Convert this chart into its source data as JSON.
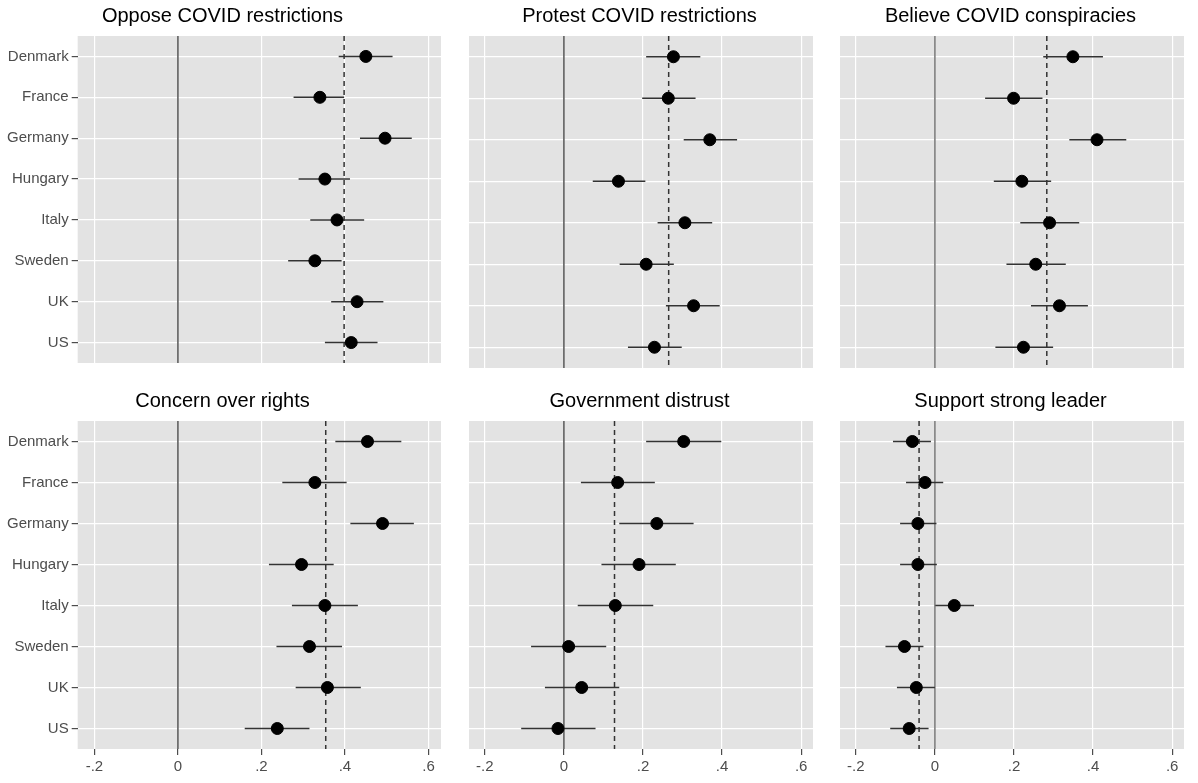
{
  "chart_data": [
    {
      "type": "scatter",
      "orientation": "horizontal",
      "title": "Oppose COVID restrictions",
      "categories": [
        "Denmark",
        "France",
        "Germany",
        "Hungary",
        "Italy",
        "Sweden",
        "UK",
        "US"
      ],
      "tick_labels": "y",
      "grid": true,
      "marker": "circle",
      "color": "#000000",
      "values": [
        0.45,
        0.34,
        0.496,
        0.352,
        0.381,
        0.328,
        0.429,
        0.415
      ],
      "errors": [
        [
          0.385,
          0.514
        ],
        [
          0.277,
          0.398
        ],
        [
          0.436,
          0.56
        ],
        [
          0.289,
          0.412
        ],
        [
          0.317,
          0.446
        ],
        [
          0.264,
          0.392
        ],
        [
          0.367,
          0.492
        ],
        [
          0.352,
          0.478
        ]
      ],
      "xlim": [
        -0.24,
        0.63
      ],
      "xticks": [
        -0.2,
        0,
        0.2,
        0.4,
        0.6
      ],
      "ref_lines": [
        {
          "axis": "x",
          "value": 0,
          "color": "#555555",
          "line_style": "solid"
        },
        {
          "axis": "x",
          "value": 0.398,
          "color": "#333333",
          "line_style": "dashed"
        }
      ]
    },
    {
      "type": "scatter",
      "orientation": "horizontal",
      "title": "Protest COVID restrictions",
      "categories": [
        null,
        null,
        null,
        null,
        null,
        null,
        null,
        null
      ],
      "tick_labels": false,
      "grid": true,
      "marker": "circle",
      "color": "#000000",
      "values": [
        0.277,
        0.264,
        0.369,
        0.138,
        0.306,
        0.208,
        0.328,
        0.229
      ],
      "errors": [
        [
          0.208,
          0.345
        ],
        [
          0.198,
          0.333
        ],
        [
          0.303,
          0.438
        ],
        [
          0.073,
          0.206
        ],
        [
          0.237,
          0.375
        ],
        [
          0.141,
          0.278
        ],
        [
          0.258,
          0.394
        ],
        [
          0.162,
          0.298
        ]
      ],
      "xlim": [
        -0.24,
        0.63
      ],
      "xticks": [
        -0.2,
        0,
        0.2,
        0.4,
        0.6
      ],
      "ref_lines": [
        {
          "axis": "x",
          "value": 0,
          "color": "#555555",
          "line_style": "solid"
        },
        {
          "axis": "x",
          "value": 0.265,
          "color": "#333333",
          "line_style": "dashed"
        }
      ]
    },
    {
      "type": "scatter",
      "orientation": "horizontal",
      "title": "Believe COVID conspiracies",
      "categories": [
        null,
        null,
        null,
        null,
        null,
        null,
        null,
        null
      ],
      "tick_labels": false,
      "grid": true,
      "marker": "circle",
      "color": "#000000",
      "values": [
        0.349,
        0.199,
        0.41,
        0.22,
        0.29,
        0.255,
        0.315,
        0.224
      ],
      "errors": [
        [
          0.274,
          0.425
        ],
        [
          0.127,
          0.272
        ],
        [
          0.34,
          0.484
        ],
        [
          0.149,
          0.294
        ],
        [
          0.216,
          0.365
        ],
        [
          0.181,
          0.331
        ],
        [
          0.243,
          0.387
        ],
        [
          0.153,
          0.299
        ]
      ],
      "xlim": [
        -0.24,
        0.63
      ],
      "xticks": [
        -0.2,
        0,
        0.2,
        0.4,
        0.6
      ],
      "ref_lines": [
        {
          "axis": "x",
          "value": 0,
          "color": "#777777",
          "line_style": "solid"
        },
        {
          "axis": "x",
          "value": 0.283,
          "color": "#333333",
          "line_style": "dashed"
        }
      ]
    },
    {
      "type": "scatter",
      "orientation": "horizontal",
      "title": "Concern over rights",
      "categories": [
        "Denmark",
        "France",
        "Germany",
        "Hungary",
        "Italy",
        "Sweden",
        "UK",
        "US"
      ],
      "grid": true,
      "marker": "circle",
      "color": "#000000",
      "values": [
        0.454,
        0.328,
        0.49,
        0.296,
        0.352,
        0.315,
        0.358,
        0.238
      ],
      "errors": [
        [
          0.377,
          0.535
        ],
        [
          0.25,
          0.404
        ],
        [
          0.413,
          0.565
        ],
        [
          0.218,
          0.373
        ],
        [
          0.273,
          0.431
        ],
        [
          0.236,
          0.393
        ],
        [
          0.282,
          0.438
        ],
        [
          0.16,
          0.315
        ]
      ],
      "xlim": [
        -0.24,
        0.63
      ],
      "xticks": [
        {
          "value": -0.2,
          "label": "-.2"
        },
        {
          "value": 0,
          "label": "0"
        },
        {
          "value": 0.2,
          "label": ".2"
        },
        {
          "value": 0.4,
          "label": ".4"
        },
        {
          "value": 0.6,
          "label": ".6"
        }
      ],
      "ref_lines": [
        {
          "axis": "x",
          "value": 0,
          "color": "#555555",
          "line_style": "solid"
        },
        {
          "axis": "x",
          "value": 0.354,
          "color": "#333333",
          "line_style": "dashed"
        }
      ]
    },
    {
      "type": "scatter",
      "orientation": "horizontal",
      "title": "Government distrust",
      "categories": [
        null,
        null,
        null,
        null,
        null,
        null,
        null,
        null
      ],
      "tick_labels": "x",
      "grid": true,
      "marker": "circle",
      "color": "#000000",
      "values": [
        0.303,
        0.136,
        0.235,
        0.19,
        0.13,
        0.012,
        0.045,
        -0.015
      ],
      "errors": [
        [
          0.208,
          0.398
        ],
        [
          0.043,
          0.23
        ],
        [
          0.14,
          0.328
        ],
        [
          0.095,
          0.283
        ],
        [
          0.035,
          0.226
        ],
        [
          -0.083,
          0.107
        ],
        [
          -0.048,
          0.14
        ],
        [
          -0.108,
          0.08
        ]
      ],
      "xlim": [
        -0.24,
        0.63
      ],
      "xticks": [
        {
          "value": -0.2,
          "label": "-.2"
        },
        {
          "value": 0,
          "label": "0"
        },
        {
          "value": 0.2,
          "label": ".2"
        },
        {
          "value": 0.4,
          "label": ".4"
        },
        {
          "value": 0.6,
          "label": ".6"
        }
      ],
      "ref_lines": [
        {
          "axis": "x",
          "value": 0,
          "color": "#555555",
          "line_style": "solid"
        },
        {
          "axis": "x",
          "value": 0.128,
          "color": "#333333",
          "line_style": "dashed"
        }
      ]
    },
    {
      "type": "scatter",
      "orientation": "horizontal",
      "title": "Support strong leader",
      "categories": [
        null,
        null,
        null,
        null,
        null,
        null,
        null,
        null
      ],
      "tick_labels": "x",
      "grid": true,
      "marker": "circle",
      "color": "#000000",
      "values": [
        -0.057,
        -0.025,
        -0.043,
        -0.043,
        0.049,
        -0.077,
        -0.047,
        -0.065
      ],
      "errors": [
        [
          -0.106,
          -0.01
        ],
        [
          -0.073,
          0.021
        ],
        [
          -0.088,
          0.004
        ],
        [
          -0.088,
          0.005
        ],
        [
          0.001,
          0.099
        ],
        [
          -0.125,
          -0.029
        ],
        [
          -0.096,
          0
        ],
        [
          -0.113,
          -0.016
        ]
      ],
      "xlim": [
        -0.24,
        0.63
      ],
      "xticks": [
        {
          "value": -0.2,
          "label": "-.2"
        },
        {
          "value": 0,
          "label": "0"
        },
        {
          "value": 0.2,
          "label": ".2"
        },
        {
          "value": 0.4,
          "label": ".4"
        },
        {
          "value": 0.6,
          "label": ".6"
        }
      ],
      "ref_lines": [
        {
          "axis": "x",
          "value": 0,
          "color": "#777777",
          "line_style": "solid"
        },
        {
          "axis": "x",
          "value": -0.04,
          "color": "#333333",
          "line_style": "dashed"
        }
      ]
    }
  ]
}
